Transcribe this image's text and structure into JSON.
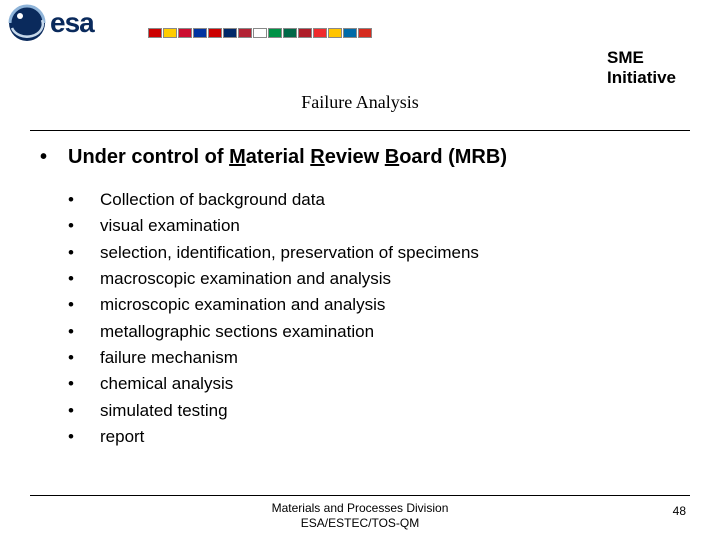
{
  "header": {
    "logo_text": "esa",
    "sme_line1": "SME",
    "sme_line2": "Initiative",
    "flags": [
      "#cc0000",
      "#ffcc00",
      "#cc0c2f",
      "#0033a0",
      "#cc0000",
      "#002868",
      "#b22234",
      "#ffffff",
      "#009246",
      "#006847",
      "#ae1c28",
      "#ef2b2d",
      "#ffc400",
      "#006aa7",
      "#d52b1e"
    ]
  },
  "title": "Failure Analysis",
  "main_bullet": {
    "prefix": "Under control of ",
    "u1": "M",
    "t1": "aterial ",
    "u2": "R",
    "t2": "eview ",
    "u3": "B",
    "t3": "oard (MRB)"
  },
  "sub_bullets": [
    "Collection of background data",
    "visual examination",
    "selection, identification, preservation of specimens",
    "macroscopic examination and analysis",
    "microscopic examination and analysis",
    "metallographic sections examination",
    "failure mechanism",
    "chemical analysis",
    "simulated testing",
    "report"
  ],
  "footer": {
    "line1": "Materials and Processes Division",
    "line2": "ESA/ESTEC/TOS-QM",
    "page": "48"
  }
}
